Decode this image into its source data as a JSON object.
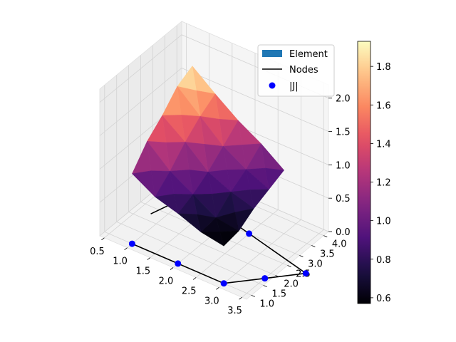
{
  "chart_data": {
    "type": "surface3d",
    "title": "",
    "axes": {
      "x": {
        "label": "",
        "range": [
          0.4,
          3.6
        ],
        "ticks": [
          "0.5",
          "1.0",
          "1.5",
          "2.0",
          "2.5",
          "3.0",
          "3.5"
        ]
      },
      "y": {
        "label": "",
        "range": [
          0.8,
          4.2
        ],
        "ticks": [
          "1.0",
          "1.5",
          "2.0",
          "2.5",
          "3.0",
          "3.5",
          "4.0"
        ]
      },
      "z": {
        "label": "",
        "range": [
          0.0,
          2.2
        ],
        "ticks": [
          "0.0",
          "0.5",
          "1.0",
          "1.5",
          "2.0"
        ]
      }
    },
    "grid": true,
    "legend": {
      "placement": "top-right",
      "entries": [
        {
          "label": "Element",
          "marker": "patch",
          "color": "#1f77b4"
        },
        {
          "label": "Nodes",
          "marker": "line",
          "color": "#000000"
        },
        {
          "label": "|J|",
          "marker": "dot",
          "color": "#0000ff"
        }
      ]
    },
    "colorbar": {
      "colormap": "magma",
      "range": [
        0.57,
        1.93
      ],
      "ticks": [
        "0.6",
        "0.8",
        "1.0",
        "1.2",
        "1.4",
        "1.6",
        "1.8"
      ]
    },
    "nodes": [
      {
        "x": 1.0,
        "y": 1.0
      },
      {
        "x": 2.0,
        "y": 1.0
      },
      {
        "x": 3.0,
        "y": 1.0
      },
      {
        "x": 3.5,
        "y": 1.75
      },
      {
        "x": 4.0,
        "y": 2.5
      },
      {
        "x": 2.5,
        "y": 3.0
      },
      {
        "x": 1.0,
        "y": 3.5
      },
      {
        "x": 0.75,
        "y": 2.25
      }
    ],
    "surface": {
      "x": [
        1.0,
        1.5,
        2.0,
        2.5,
        3.0
      ],
      "y": [
        1.0,
        1.625,
        2.25,
        2.875,
        3.5
      ],
      "z": [
        [
          1.05,
          0.85,
          0.75,
          0.62,
          0.56
        ],
        [
          1.35,
          1.05,
          0.85,
          0.65,
          0.6
        ],
        [
          1.55,
          1.3,
          1.0,
          0.85,
          0.75
        ],
        [
          1.8,
          1.5,
          1.2,
          1.0,
          0.85
        ],
        [
          1.92,
          1.65,
          1.4,
          1.2,
          0.95
        ]
      ]
    }
  }
}
